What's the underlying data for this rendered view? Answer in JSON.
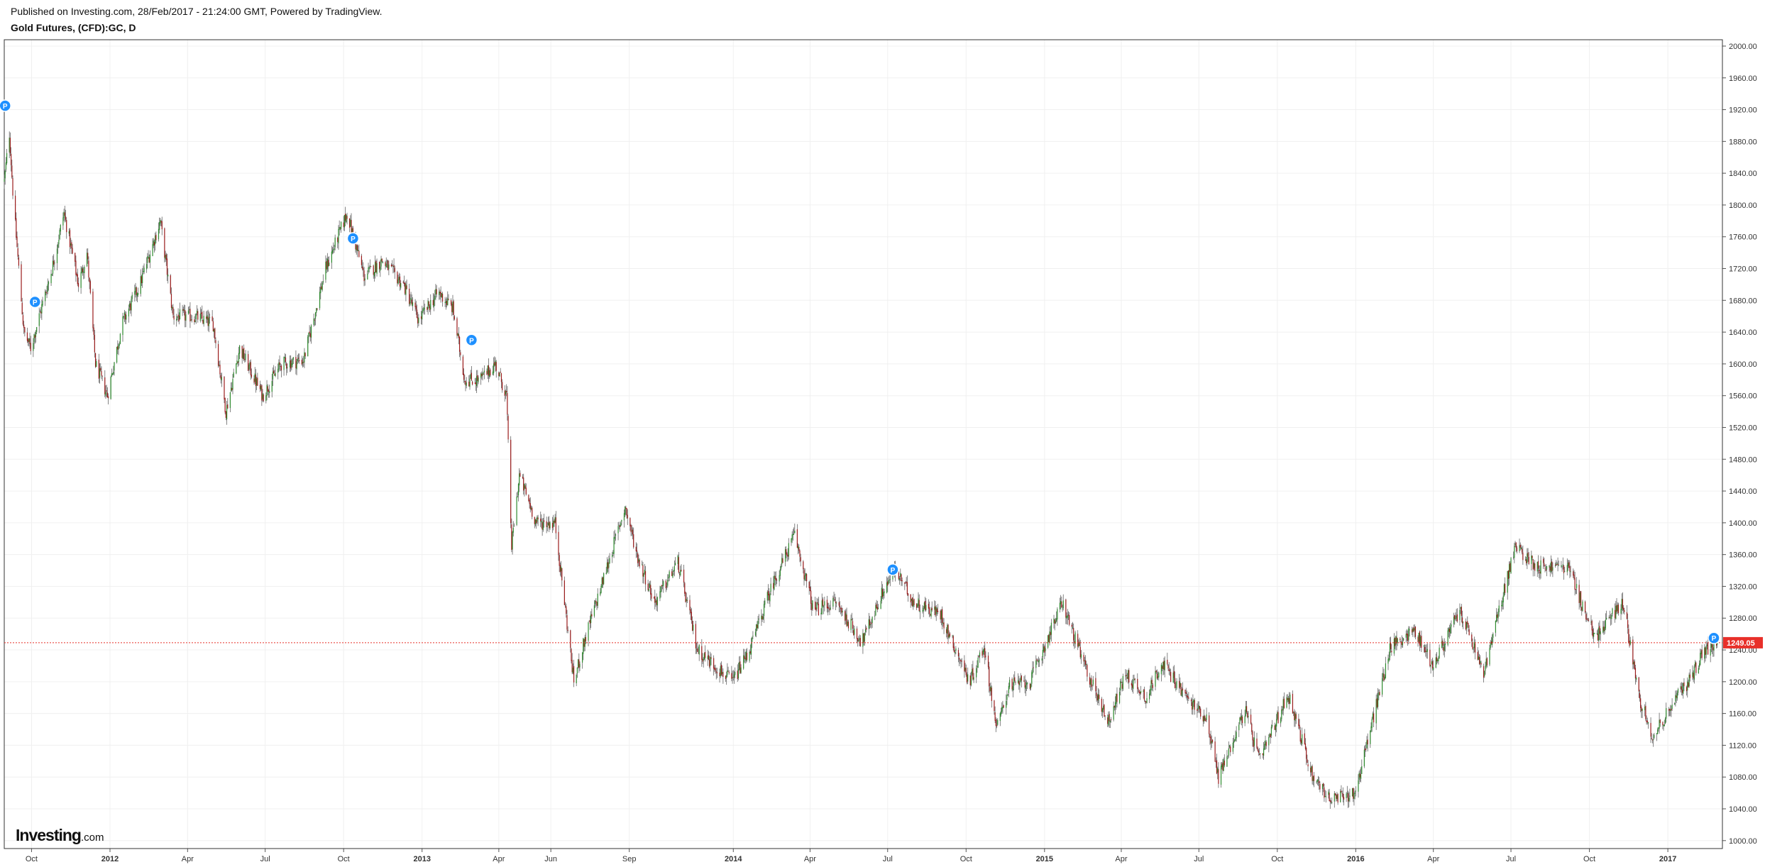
{
  "header": {
    "published": "Published on Investing.com, 28/Feb/2017 - 21:24:00 GMT, Powered by TradingView.",
    "symbol": "Gold Futures, (CFD):GC, D"
  },
  "logo": {
    "brand": "Investing",
    "tld": ".com"
  },
  "colors": {
    "up": "#2e8b2e",
    "down": "#9b1c1c",
    "wick": "#666666",
    "last_price_line": "#e8302a",
    "grid": "#f0f0f0",
    "marker": "#1e90ff"
  },
  "icons": {
    "event_marker": "P"
  },
  "chart_data": {
    "type": "candlestick",
    "title": "",
    "xlabel": "",
    "ylabel": "",
    "ylim": [
      990,
      2008
    ],
    "xlim": [
      "2011-08-30",
      "2017-03-06"
    ],
    "grid": true,
    "y_ticks": [
      "2000.00",
      "1960.00",
      "1920.00",
      "1880.00",
      "1840.00",
      "1800.00",
      "1760.00",
      "1720.00",
      "1680.00",
      "1640.00",
      "1600.00",
      "1560.00",
      "1520.00",
      "1480.00",
      "1440.00",
      "1400.00",
      "1360.00",
      "1320.00",
      "1280.00",
      "1240.00",
      "1200.00",
      "1160.00",
      "1120.00",
      "1080.00",
      "1040.00",
      "1000.00"
    ],
    "x_ticks": [
      {
        "label": "Oct",
        "date": "2011-10-01",
        "bold": false
      },
      {
        "label": "2012",
        "date": "2012-01-01",
        "bold": true
      },
      {
        "label": "Apr",
        "date": "2012-04-01",
        "bold": false
      },
      {
        "label": "Jul",
        "date": "2012-07-01",
        "bold": false
      },
      {
        "label": "Oct",
        "date": "2012-10-01",
        "bold": false
      },
      {
        "label": "2013",
        "date": "2013-01-01",
        "bold": true
      },
      {
        "label": "Apr",
        "date": "2013-04-01",
        "bold": false
      },
      {
        "label": "Jun",
        "date": "2013-06-01",
        "bold": false
      },
      {
        "label": "Sep",
        "date": "2013-09-01",
        "bold": false
      },
      {
        "label": "2014",
        "date": "2014-01-01",
        "bold": true
      },
      {
        "label": "Apr",
        "date": "2014-04-01",
        "bold": false
      },
      {
        "label": "Jul",
        "date": "2014-07-01",
        "bold": false
      },
      {
        "label": "Oct",
        "date": "2014-10-01",
        "bold": false
      },
      {
        "label": "2015",
        "date": "2015-01-01",
        "bold": true
      },
      {
        "label": "Apr",
        "date": "2015-04-01",
        "bold": false
      },
      {
        "label": "Jul",
        "date": "2015-07-01",
        "bold": false
      },
      {
        "label": "Oct",
        "date": "2015-10-01",
        "bold": false
      },
      {
        "label": "2016",
        "date": "2016-01-01",
        "bold": true
      },
      {
        "label": "Apr",
        "date": "2016-04-01",
        "bold": false
      },
      {
        "label": "Jul",
        "date": "2016-07-01",
        "bold": false
      },
      {
        "label": "Oct",
        "date": "2016-10-01",
        "bold": false
      },
      {
        "label": "2017",
        "date": "2017-01-01",
        "bold": true
      }
    ],
    "last_price": 1249.05,
    "last_price_label": "1249.05",
    "series": [
      {
        "price_path": [
          [
            "2011-08-30",
            1830
          ],
          [
            "2011-09-05",
            1890
          ],
          [
            "2011-09-10",
            1800
          ],
          [
            "2011-09-22",
            1640
          ],
          [
            "2011-09-30",
            1620
          ],
          [
            "2011-10-10",
            1660
          ],
          [
            "2011-10-25",
            1720
          ],
          [
            "2011-11-08",
            1790
          ],
          [
            "2011-11-25",
            1700
          ],
          [
            "2011-12-05",
            1740
          ],
          [
            "2011-12-15",
            1600
          ],
          [
            "2011-12-29",
            1560
          ],
          [
            "2012-01-15",
            1650
          ],
          [
            "2012-02-05",
            1700
          ],
          [
            "2012-02-29",
            1780
          ],
          [
            "2012-03-15",
            1660
          ],
          [
            "2012-04-10",
            1660
          ],
          [
            "2012-05-01",
            1650
          ],
          [
            "2012-05-16",
            1540
          ],
          [
            "2012-06-01",
            1620
          ],
          [
            "2012-06-28",
            1560
          ],
          [
            "2012-07-20",
            1600
          ],
          [
            "2012-08-15",
            1605
          ],
          [
            "2012-09-10",
            1720
          ],
          [
            "2012-10-05",
            1790
          ],
          [
            "2012-10-25",
            1710
          ],
          [
            "2012-11-15",
            1730
          ],
          [
            "2012-12-10",
            1700
          ],
          [
            "2012-12-28",
            1655
          ],
          [
            "2013-01-20",
            1690
          ],
          [
            "2013-02-06",
            1670
          ],
          [
            "2013-02-20",
            1580
          ],
          [
            "2013-03-10",
            1580
          ],
          [
            "2013-03-28",
            1600
          ],
          [
            "2013-04-10",
            1560
          ],
          [
            "2013-04-16",
            1370
          ],
          [
            "2013-04-25",
            1460
          ],
          [
            "2013-05-15",
            1400
          ],
          [
            "2013-06-06",
            1400
          ],
          [
            "2013-06-28",
            1200
          ],
          [
            "2013-07-10",
            1250
          ],
          [
            "2013-07-30",
            1320
          ],
          [
            "2013-08-27",
            1420
          ],
          [
            "2013-09-10",
            1360
          ],
          [
            "2013-10-01",
            1300
          ],
          [
            "2013-10-28",
            1350
          ],
          [
            "2013-11-20",
            1240
          ],
          [
            "2013-12-31",
            1200
          ],
          [
            "2014-01-20",
            1240
          ],
          [
            "2014-02-15",
            1320
          ],
          [
            "2014-03-14",
            1385
          ],
          [
            "2014-04-05",
            1290
          ],
          [
            "2014-05-01",
            1300
          ],
          [
            "2014-06-01",
            1250
          ],
          [
            "2014-06-28",
            1320
          ],
          [
            "2014-07-10",
            1340
          ],
          [
            "2014-08-01",
            1300
          ],
          [
            "2014-09-01",
            1285
          ],
          [
            "2014-10-05",
            1200
          ],
          [
            "2014-10-22",
            1245
          ],
          [
            "2014-11-06",
            1140
          ],
          [
            "2014-11-20",
            1195
          ],
          [
            "2014-12-15",
            1200
          ],
          [
            "2015-01-22",
            1300
          ],
          [
            "2015-02-15",
            1225
          ],
          [
            "2015-03-17",
            1150
          ],
          [
            "2015-04-06",
            1210
          ],
          [
            "2015-05-01",
            1180
          ],
          [
            "2015-05-18",
            1225
          ],
          [
            "2015-06-20",
            1175
          ],
          [
            "2015-07-10",
            1155
          ],
          [
            "2015-07-24",
            1080
          ],
          [
            "2015-08-24",
            1165
          ],
          [
            "2015-09-10",
            1100
          ],
          [
            "2015-10-14",
            1185
          ],
          [
            "2015-11-10",
            1085
          ],
          [
            "2015-12-03",
            1050
          ],
          [
            "2015-12-31",
            1060
          ],
          [
            "2016-02-11",
            1245
          ],
          [
            "2016-03-10",
            1265
          ],
          [
            "2016-04-01",
            1220
          ],
          [
            "2016-05-02",
            1290
          ],
          [
            "2016-05-30",
            1210
          ],
          [
            "2016-06-24",
            1320
          ],
          [
            "2016-07-06",
            1370
          ],
          [
            "2016-08-01",
            1345
          ],
          [
            "2016-09-06",
            1345
          ],
          [
            "2016-10-07",
            1255
          ],
          [
            "2016-11-09",
            1300
          ],
          [
            "2016-11-30",
            1175
          ],
          [
            "2016-12-15",
            1130
          ],
          [
            "2017-01-05",
            1170
          ],
          [
            "2017-01-25",
            1200
          ],
          [
            "2017-02-10",
            1235
          ],
          [
            "2017-02-28",
            1249
          ]
        ]
      }
    ],
    "markers": [
      {
        "label": "P",
        "date": "2011-08-31",
        "price": 1925
      },
      {
        "label": "P",
        "date": "2011-10-05",
        "price": 1678
      },
      {
        "label": "P",
        "date": "2012-10-12",
        "price": 1758
      },
      {
        "label": "P",
        "date": "2013-02-28",
        "price": 1630
      },
      {
        "label": "P",
        "date": "2014-07-07",
        "price": 1341
      },
      {
        "label": "P",
        "date": "2017-02-24",
        "price": 1255
      }
    ]
  }
}
